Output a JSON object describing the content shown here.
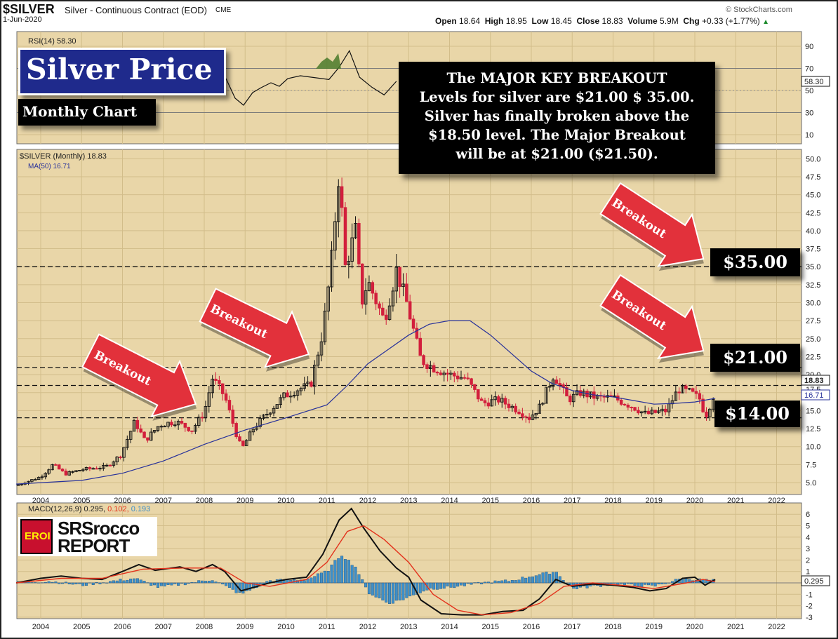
{
  "header": {
    "symbol": "$SILVER",
    "description": "Silver - Continuous Contract (EOD)",
    "exchange": "CME",
    "date": "1-Jun-2020",
    "open_label": "Open",
    "open": "18.64",
    "high_label": "High",
    "high": "18.95",
    "low_label": "Low",
    "low": "18.45",
    "close_label": "Close",
    "close": "18.83",
    "volume_label": "Volume",
    "volume": "5.9M",
    "chg_label": "Chg",
    "chg": "+0.33 (+1.77%)",
    "source": "© StockCharts.com"
  },
  "overlays": {
    "title": "Silver Price",
    "subtitle": "Monthly Chart",
    "note_lines": [
      "The MAJOR KEY BREAKOUT",
      "Levels for silver are $21.00 $ 35.00.",
      "Silver has finally broken above the",
      "$18.50 level.  The Major Breakout",
      "will be at $21.00 ($21.50)."
    ],
    "arrow_label": "Breakout",
    "level_35": "$35.00",
    "level_21": "$21.00",
    "level_14": "$14.00",
    "logo_badge": "EROI",
    "logo_line1": "SRSrocco",
    "logo_line2": "REPORT"
  },
  "colors": {
    "panel_bg": "#e9d6a8",
    "up_candle": "#111111",
    "down_candle": "#d21f3c",
    "ma_line": "#27319a",
    "arrow": "#e2313b",
    "macd_line": "#111111",
    "signal_line": "#e3321c",
    "histogram": "#3e8fc8"
  },
  "chart_data": [
    {
      "type": "line",
      "panel": "RSI",
      "legend": "RSI(14) 58.30",
      "series": [
        {
          "name": "RSI(14)",
          "x": [
            2011.05,
            2011.3,
            2011.55,
            2011.8,
            2012.1,
            2012.4,
            2012.7
          ],
          "values": [
            60,
            71,
            86,
            62,
            53,
            46,
            58.3
          ]
        }
      ],
      "ylim": [
        0,
        100
      ],
      "y_ticks": [
        90,
        70,
        50,
        30,
        10
      ],
      "reference_lines": [
        70,
        30
      ],
      "last_value": "58.30"
    },
    {
      "type": "candlestick",
      "panel": "Price",
      "legend": "$SILVER (Monthly) 18.83",
      "ma_legend": "MA(50) 16.71",
      "x_ticks": [
        "2004",
        "2005",
        "2006",
        "2007",
        "2008",
        "2009",
        "2010",
        "2011",
        "2012",
        "2013",
        "2014",
        "2015",
        "2016",
        "2017",
        "2018",
        "2019",
        "2020",
        "2021",
        "2022"
      ],
      "y_ticks": [
        5.0,
        7.5,
        10.0,
        12.5,
        15.0,
        17.5,
        20.0,
        22.5,
        25.0,
        27.5,
        30.0,
        32.5,
        35.0,
        37.5,
        40.0,
        42.5,
        45.0,
        47.5,
        50.0
      ],
      "ylim": [
        4,
        51
      ],
      "close_path": [
        {
          "t": 2003.4,
          "v": 4.6
        },
        {
          "t": 2004.0,
          "v": 5.8
        },
        {
          "t": 2004.3,
          "v": 7.5
        },
        {
          "t": 2004.6,
          "v": 6.2
        },
        {
          "t": 2005.0,
          "v": 6.8
        },
        {
          "t": 2005.6,
          "v": 7.2
        },
        {
          "t": 2005.95,
          "v": 8.8
        },
        {
          "t": 2006.3,
          "v": 13.5
        },
        {
          "t": 2006.55,
          "v": 10.8
        },
        {
          "t": 2006.9,
          "v": 13.0
        },
        {
          "t": 2007.3,
          "v": 13.5
        },
        {
          "t": 2007.7,
          "v": 12.3
        },
        {
          "t": 2008.0,
          "v": 14.8
        },
        {
          "t": 2008.2,
          "v": 19.5
        },
        {
          "t": 2008.5,
          "v": 17.0
        },
        {
          "t": 2008.85,
          "v": 10.5
        },
        {
          "t": 2008.95,
          "v": 10.0
        },
        {
          "t": 2009.2,
          "v": 12.5
        },
        {
          "t": 2009.6,
          "v": 15.0
        },
        {
          "t": 2009.95,
          "v": 17.0
        },
        {
          "t": 2010.3,
          "v": 18.0
        },
        {
          "t": 2010.6,
          "v": 18.5
        },
        {
          "t": 2010.9,
          "v": 26.0
        },
        {
          "t": 2011.1,
          "v": 35.0
        },
        {
          "t": 2011.3,
          "v": 48.5
        },
        {
          "t": 2011.45,
          "v": 35.0
        },
        {
          "t": 2011.7,
          "v": 40.0
        },
        {
          "t": 2011.85,
          "v": 30.0
        },
        {
          "t": 2012.0,
          "v": 33.0
        },
        {
          "t": 2012.4,
          "v": 27.5
        },
        {
          "t": 2012.7,
          "v": 34.5
        },
        {
          "t": 2012.95,
          "v": 30.0
        },
        {
          "t": 2013.3,
          "v": 22.0
        },
        {
          "t": 2013.6,
          "v": 21.0
        },
        {
          "t": 2014.0,
          "v": 20.0
        },
        {
          "t": 2014.4,
          "v": 19.5
        },
        {
          "t": 2014.8,
          "v": 16.0
        },
        {
          "t": 2015.2,
          "v": 16.5
        },
        {
          "t": 2015.7,
          "v": 15.0
        },
        {
          "t": 2015.95,
          "v": 14.0
        },
        {
          "t": 2016.2,
          "v": 15.5
        },
        {
          "t": 2016.55,
          "v": 20.0
        },
        {
          "t": 2016.9,
          "v": 16.5
        },
        {
          "t": 2017.2,
          "v": 17.5
        },
        {
          "t": 2017.6,
          "v": 16.8
        },
        {
          "t": 2018.0,
          "v": 16.8
        },
        {
          "t": 2018.5,
          "v": 15.5
        },
        {
          "t": 2018.8,
          "v": 14.5
        },
        {
          "t": 2019.3,
          "v": 15.0
        },
        {
          "t": 2019.6,
          "v": 18.0
        },
        {
          "t": 2019.9,
          "v": 17.5
        },
        {
          "t": 2020.15,
          "v": 16.5
        },
        {
          "t": 2020.25,
          "v": 14.0
        },
        {
          "t": 2020.45,
          "v": 17.0
        },
        {
          "t": 2020.5,
          "v": 18.83
        }
      ],
      "ma50": [
        {
          "t": 2003.4,
          "v": 4.8
        },
        {
          "t": 2005.0,
          "v": 5.3
        },
        {
          "t": 2006.0,
          "v": 6.3
        },
        {
          "t": 2007.0,
          "v": 8.0
        },
        {
          "t": 2008.0,
          "v": 10.3
        },
        {
          "t": 2009.0,
          "v": 12.3
        },
        {
          "t": 2010.0,
          "v": 14.0
        },
        {
          "t": 2011.0,
          "v": 15.8
        },
        {
          "t": 2011.5,
          "v": 18.5
        },
        {
          "t": 2012.0,
          "v": 21.5
        },
        {
          "t": 2012.5,
          "v": 23.5
        },
        {
          "t": 2013.0,
          "v": 25.5
        },
        {
          "t": 2013.5,
          "v": 27.0
        },
        {
          "t": 2014.0,
          "v": 27.5
        },
        {
          "t": 2014.5,
          "v": 27.5
        },
        {
          "t": 2015.0,
          "v": 25.5
        },
        {
          "t": 2015.5,
          "v": 23.0
        },
        {
          "t": 2016.0,
          "v": 20.5
        },
        {
          "t": 2016.5,
          "v": 18.8
        },
        {
          "t": 2017.0,
          "v": 17.8
        },
        {
          "t": 2017.5,
          "v": 17.2
        },
        {
          "t": 2018.0,
          "v": 16.9
        },
        {
          "t": 2018.5,
          "v": 16.4
        },
        {
          "t": 2019.0,
          "v": 15.9
        },
        {
          "t": 2019.5,
          "v": 16.0
        },
        {
          "t": 2020.0,
          "v": 16.2
        },
        {
          "t": 2020.5,
          "v": 16.71
        }
      ],
      "horizontal_lines": [
        35.0,
        21.0,
        18.5,
        14.0
      ],
      "last_close": "18.83",
      "ma_last": "16.71",
      "hidden_ma_tick": "17.5"
    },
    {
      "type": "line",
      "panel": "MACD",
      "legend": "MACD(12,26,9)",
      "macd_value": "0.295",
      "signal_value": "0.102",
      "histogram_value": "0.193",
      "y_ticks": [
        6,
        5,
        4,
        3,
        2,
        1,
        0,
        -1,
        -2,
        -3
      ],
      "ylim": [
        -3.3,
        6.8
      ],
      "series": [
        {
          "name": "MACD",
          "points": [
            {
              "t": 2003.4,
              "v": 0.0
            },
            {
              "t": 2004.0,
              "v": 0.4
            },
            {
              "t": 2004.5,
              "v": 0.6
            },
            {
              "t": 2005.0,
              "v": 0.4
            },
            {
              "t": 2005.5,
              "v": 0.3
            },
            {
              "t": 2006.0,
              "v": 1.0
            },
            {
              "t": 2006.4,
              "v": 1.6
            },
            {
              "t": 2006.8,
              "v": 1.1
            },
            {
              "t": 2007.4,
              "v": 1.4
            },
            {
              "t": 2007.8,
              "v": 1.0
            },
            {
              "t": 2008.2,
              "v": 1.6
            },
            {
              "t": 2008.5,
              "v": 1.0
            },
            {
              "t": 2008.9,
              "v": -0.7
            },
            {
              "t": 2009.2,
              "v": -0.4
            },
            {
              "t": 2009.6,
              "v": 0.0
            },
            {
              "t": 2010.0,
              "v": 0.3
            },
            {
              "t": 2010.5,
              "v": 0.5
            },
            {
              "t": 2010.9,
              "v": 2.5
            },
            {
              "t": 2011.3,
              "v": 5.5
            },
            {
              "t": 2011.6,
              "v": 6.5
            },
            {
              "t": 2011.9,
              "v": 4.8
            },
            {
              "t": 2012.3,
              "v": 2.8
            },
            {
              "t": 2012.7,
              "v": 1.3
            },
            {
              "t": 2013.0,
              "v": 0.5
            },
            {
              "t": 2013.3,
              "v": -1.5
            },
            {
              "t": 2013.8,
              "v": -2.7
            },
            {
              "t": 2014.3,
              "v": -2.8
            },
            {
              "t": 2014.8,
              "v": -2.8
            },
            {
              "t": 2015.3,
              "v": -2.5
            },
            {
              "t": 2015.8,
              "v": -2.4
            },
            {
              "t": 2016.2,
              "v": -1.4
            },
            {
              "t": 2016.6,
              "v": 0.3
            },
            {
              "t": 2017.0,
              "v": -0.3
            },
            {
              "t": 2017.5,
              "v": -0.1
            },
            {
              "t": 2018.0,
              "v": -0.2
            },
            {
              "t": 2018.5,
              "v": -0.4
            },
            {
              "t": 2018.9,
              "v": -0.7
            },
            {
              "t": 2019.3,
              "v": -0.5
            },
            {
              "t": 2019.7,
              "v": 0.4
            },
            {
              "t": 2020.0,
              "v": 0.5
            },
            {
              "t": 2020.25,
              "v": -0.2
            },
            {
              "t": 2020.5,
              "v": 0.295
            }
          ]
        },
        {
          "name": "Signal",
          "points": [
            {
              "t": 2003.4,
              "v": 0.0
            },
            {
              "t": 2004.5,
              "v": 0.4
            },
            {
              "t": 2005.5,
              "v": 0.4
            },
            {
              "t": 2006.5,
              "v": 1.2
            },
            {
              "t": 2007.5,
              "v": 1.3
            },
            {
              "t": 2008.4,
              "v": 1.3
            },
            {
              "t": 2009.0,
              "v": 0.0
            },
            {
              "t": 2009.6,
              "v": -0.3
            },
            {
              "t": 2010.5,
              "v": 0.3
            },
            {
              "t": 2011.0,
              "v": 1.8
            },
            {
              "t": 2011.5,
              "v": 4.5
            },
            {
              "t": 2011.9,
              "v": 5.0
            },
            {
              "t": 2012.4,
              "v": 3.8
            },
            {
              "t": 2013.0,
              "v": 1.8
            },
            {
              "t": 2013.6,
              "v": -1.0
            },
            {
              "t": 2014.2,
              "v": -2.4
            },
            {
              "t": 2014.8,
              "v": -2.8
            },
            {
              "t": 2015.5,
              "v": -2.6
            },
            {
              "t": 2016.2,
              "v": -1.8
            },
            {
              "t": 2016.8,
              "v": -0.3
            },
            {
              "t": 2017.5,
              "v": 0.0
            },
            {
              "t": 2018.5,
              "v": -0.3
            },
            {
              "t": 2019.0,
              "v": -0.5
            },
            {
              "t": 2019.8,
              "v": 0.0
            },
            {
              "t": 2020.2,
              "v": 0.3
            },
            {
              "t": 2020.5,
              "v": 0.102
            }
          ]
        }
      ],
      "histogram": [
        {
          "t": 2003.4,
          "v": 0.0
        },
        {
          "t": 2004.2,
          "v": 0.15
        },
        {
          "t": 2005.0,
          "v": -0.2
        },
        {
          "t": 2006.3,
          "v": 0.4
        },
        {
          "t": 2006.9,
          "v": -0.4
        },
        {
          "t": 2008.2,
          "v": 0.3
        },
        {
          "t": 2008.9,
          "v": -1.0
        },
        {
          "t": 2009.6,
          "v": 0.2
        },
        {
          "t": 2010.5,
          "v": 0.3
        },
        {
          "t": 2011.0,
          "v": 1.0
        },
        {
          "t": 2011.35,
          "v": 2.5
        },
        {
          "t": 2011.7,
          "v": 1.4
        },
        {
          "t": 2012.0,
          "v": -0.8
        },
        {
          "t": 2012.5,
          "v": -1.8
        },
        {
          "t": 2012.9,
          "v": -1.4
        },
        {
          "t": 2013.5,
          "v": -0.5
        },
        {
          "t": 2014.0,
          "v": -0.4
        },
        {
          "t": 2014.8,
          "v": 0.0
        },
        {
          "t": 2015.5,
          "v": 0.2
        },
        {
          "t": 2016.0,
          "v": 0.6
        },
        {
          "t": 2016.6,
          "v": 1.0
        },
        {
          "t": 2017.0,
          "v": -0.5
        },
        {
          "t": 2018.0,
          "v": -0.1
        },
        {
          "t": 2019.0,
          "v": -0.3
        },
        {
          "t": 2019.7,
          "v": 0.4
        },
        {
          "t": 2020.0,
          "v": 0.3
        },
        {
          "t": 2020.5,
          "v": 0.193
        }
      ],
      "last_value": "0.295"
    }
  ]
}
